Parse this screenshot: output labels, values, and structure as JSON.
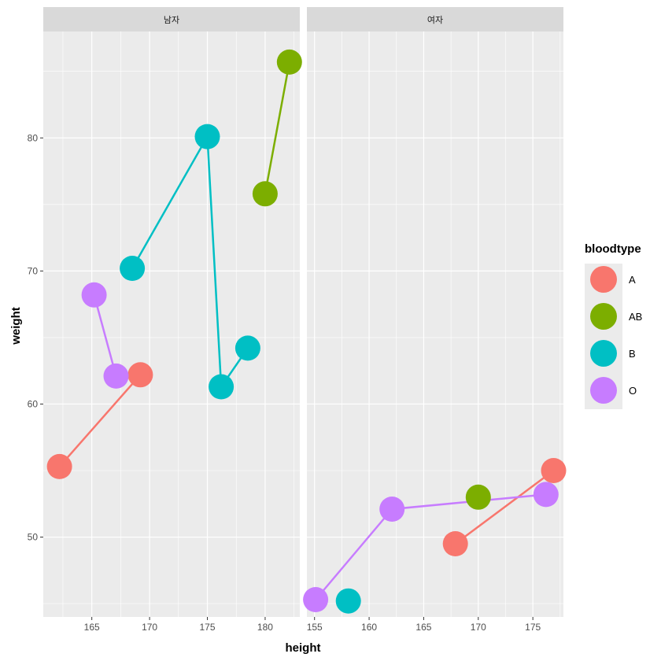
{
  "chart_data": {
    "type": "scatter",
    "geom": [
      "point",
      "line"
    ],
    "xlabel": "height",
    "ylabel": "weight",
    "ylim": [
      44,
      88
    ],
    "y_ticks": [
      50,
      60,
      70,
      80
    ],
    "legend": {
      "title": "bloodtype",
      "placement": "right",
      "entries": [
        {
          "label": "A",
          "color": "#F8766D"
        },
        {
          "label": "AB",
          "color": "#7CAE00"
        },
        {
          "label": "B",
          "color": "#00BFC4"
        },
        {
          "label": "O",
          "color": "#C77CFF"
        }
      ]
    },
    "panels": [
      {
        "title": "남자",
        "xlim": [
          160.8,
          183.0
        ],
        "x_ticks": [
          165,
          170,
          175,
          180
        ],
        "series": [
          {
            "name": "A",
            "points": [
              {
                "x": 162.2,
                "y": 55.3
              },
              {
                "x": 169.2,
                "y": 62.2
              }
            ]
          },
          {
            "name": "AB",
            "points": [
              {
                "x": 180.0,
                "y": 75.8
              },
              {
                "x": 182.1,
                "y": 85.7
              }
            ]
          },
          {
            "name": "B",
            "points": [
              {
                "x": 168.5,
                "y": 70.2
              },
              {
                "x": 175.0,
                "y": 80.1
              },
              {
                "x": 176.2,
                "y": 61.3
              },
              {
                "x": 178.5,
                "y": 64.2
              }
            ]
          },
          {
            "name": "O",
            "points": [
              {
                "x": 165.2,
                "y": 68.2
              },
              {
                "x": 167.1,
                "y": 62.1
              }
            ]
          }
        ]
      },
      {
        "title": "여자",
        "xlim": [
          154.3,
          177.8
        ],
        "x_ticks": [
          155,
          160,
          165,
          170,
          175
        ],
        "series": [
          {
            "name": "A",
            "points": [
              {
                "x": 167.9,
                "y": 49.5
              },
              {
                "x": 176.9,
                "y": 55.0
              }
            ]
          },
          {
            "name": "AB",
            "points": [
              {
                "x": 170.0,
                "y": 53.0
              }
            ]
          },
          {
            "name": "B",
            "points": [
              {
                "x": 158.1,
                "y": 45.2
              }
            ]
          },
          {
            "name": "O",
            "points": [
              {
                "x": 155.1,
                "y": 45.3
              },
              {
                "x": 162.1,
                "y": 52.1
              },
              {
                "x": 176.2,
                "y": 53.2
              }
            ]
          }
        ]
      }
    ]
  }
}
